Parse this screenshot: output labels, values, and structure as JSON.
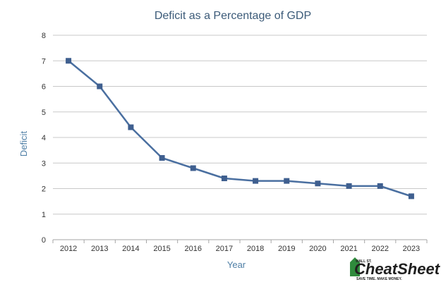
{
  "chart_data": {
    "type": "line",
    "title": "Deficit as a Percentage of GDP",
    "xlabel": "Year",
    "ylabel": "Deficit",
    "categories": [
      "2012",
      "2013",
      "2014",
      "2015",
      "2016",
      "2017",
      "2018",
      "2019",
      "2020",
      "2021",
      "2022",
      "2023"
    ],
    "series": [
      {
        "values": [
          7.0,
          6.0,
          4.4,
          3.2,
          2.8,
          2.4,
          2.3,
          2.3,
          2.2,
          2.1,
          2.1,
          1.7
        ]
      }
    ],
    "ylim": [
      0,
      8
    ],
    "yticks": [
      0,
      1,
      2,
      3,
      4,
      5,
      6,
      7,
      8
    ],
    "grid": true,
    "legend": "none",
    "colors": {
      "line": "#4a6fa0",
      "marker": "#3f5f8f"
    }
  },
  "watermark": {
    "top": "WALL ST.",
    "brand": "CheatSheet",
    "tagline": "SAVE TIME. MAKE MONEY."
  }
}
